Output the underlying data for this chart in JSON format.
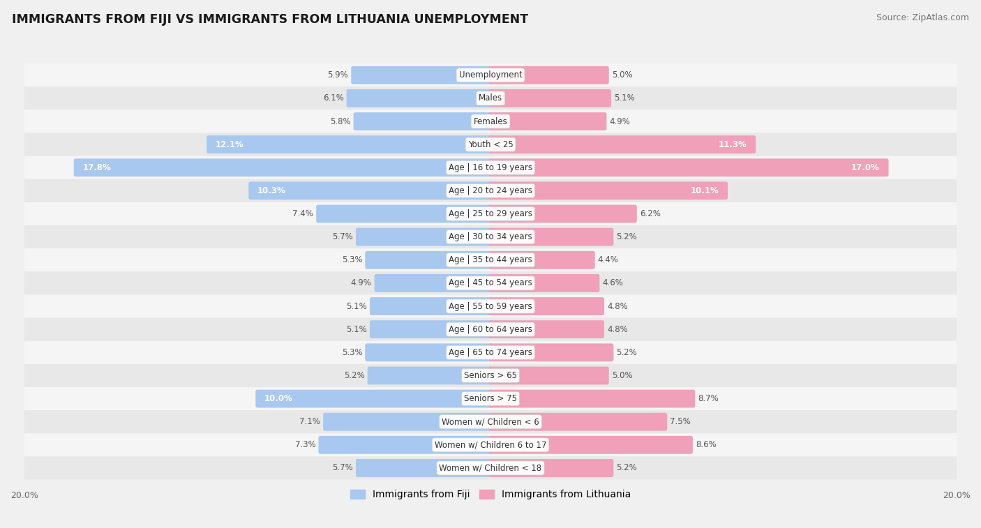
{
  "title": "IMMIGRANTS FROM FIJI VS IMMIGRANTS FROM LITHUANIA UNEMPLOYMENT",
  "source": "Source: ZipAtlas.com",
  "categories": [
    "Unemployment",
    "Males",
    "Females",
    "Youth < 25",
    "Age | 16 to 19 years",
    "Age | 20 to 24 years",
    "Age | 25 to 29 years",
    "Age | 30 to 34 years",
    "Age | 35 to 44 years",
    "Age | 45 to 54 years",
    "Age | 55 to 59 years",
    "Age | 60 to 64 years",
    "Age | 65 to 74 years",
    "Seniors > 65",
    "Seniors > 75",
    "Women w/ Children < 6",
    "Women w/ Children 6 to 17",
    "Women w/ Children < 18"
  ],
  "fiji_values": [
    5.9,
    6.1,
    5.8,
    12.1,
    17.8,
    10.3,
    7.4,
    5.7,
    5.3,
    4.9,
    5.1,
    5.1,
    5.3,
    5.2,
    10.0,
    7.1,
    7.3,
    5.7
  ],
  "lithuania_values": [
    5.0,
    5.1,
    4.9,
    11.3,
    17.0,
    10.1,
    6.2,
    5.2,
    4.4,
    4.6,
    4.8,
    4.8,
    5.2,
    5.0,
    8.7,
    7.5,
    8.6,
    5.2
  ],
  "fiji_color": "#a8c8f0",
  "lithuania_color": "#f0a0b8",
  "fiji_label": "Immigrants from Fiji",
  "lithuania_label": "Immigrants from Lithuania",
  "axis_limit": 20.0,
  "bar_height": 0.62,
  "highlight_threshold": 9.5,
  "row_colors": [
    "#f5f5f5",
    "#e8e8e8"
  ]
}
